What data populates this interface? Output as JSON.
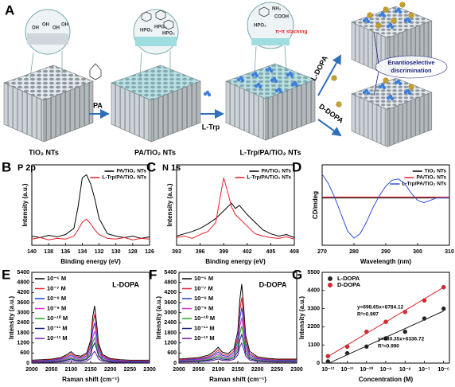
{
  "schematic": {
    "label": "A",
    "substrates": [
      "TiO₂ NTs",
      "PA/TiO₂ NTs",
      "L-Trp/PA/TiO₂ NTs"
    ],
    "reagents": [
      "PA",
      "L-Trp",
      "L-DOPA",
      "D-DOPA"
    ],
    "stacking": "π-π stacking",
    "discrimination": [
      "Enantioselective",
      "discrimination"
    ],
    "groups": [
      "OH",
      "HPO₃",
      "NH₂",
      "COOH"
    ]
  },
  "chart_data": [
    {
      "type": "line",
      "label": "B",
      "title": "P 2p",
      "xlabel": "Binding energy (eV)",
      "ylabel": "Intensity (a.u.)",
      "x": [
        140,
        139,
        138,
        137,
        136,
        135,
        134.5,
        134,
        133.5,
        133,
        132.5,
        132,
        131,
        130,
        129,
        128,
        127,
        126
      ],
      "xlim": [
        140,
        126
      ],
      "xticks": [
        140,
        138,
        136,
        134,
        132,
        130,
        128,
        126
      ],
      "ylim": [
        0,
        105
      ],
      "legend": "top-right",
      "series": [
        {
          "name": "PA/TiO₂ NTs",
          "color": "#000000",
          "values": [
            12,
            10,
            13,
            11,
            14,
            22,
            50,
            88,
            92,
            80,
            60,
            35,
            15,
            12,
            10,
            12,
            9,
            11
          ]
        },
        {
          "name": "L-Trp/PA/TiO₂ NTs",
          "color": "#e8202a",
          "values": [
            8,
            10,
            7,
            9,
            8,
            12,
            20,
            30,
            34,
            28,
            20,
            14,
            9,
            8,
            10,
            7,
            9,
            8
          ]
        }
      ]
    },
    {
      "type": "line",
      "label": "C",
      "title": "N 1s",
      "xlabel": "Binding energy (eV)",
      "ylabel": "Intensity (a.u.)",
      "x": [
        393,
        394,
        395,
        396,
        397,
        398,
        398.5,
        399,
        399.5,
        400,
        400.5,
        401,
        402,
        403,
        404,
        405,
        406,
        407,
        408
      ],
      "xlim": [
        393,
        408
      ],
      "xticks": [
        393,
        396,
        399,
        402,
        405,
        408
      ],
      "ylim": [
        0,
        105
      ],
      "legend": "top-right",
      "series": [
        {
          "name": "PA/TiO₂ NTs",
          "color": "#000000",
          "values": [
            12,
            15,
            18,
            22,
            28,
            35,
            40,
            45,
            50,
            55,
            48,
            52,
            40,
            30,
            20,
            15,
            12,
            14,
            10
          ]
        },
        {
          "name": "L-Trp/PA/TiO₂ NTs",
          "color": "#e8202a",
          "values": [
            10,
            12,
            9,
            14,
            18,
            30,
            60,
            88,
            70,
            50,
            40,
            35,
            25,
            15,
            12,
            10,
            9,
            11,
            8
          ]
        }
      ]
    },
    {
      "type": "line",
      "label": "D",
      "xlabel": "Wavelength (nm)",
      "ylabel": "CD/mdeg",
      "x": [
        270,
        272,
        274,
        276,
        278,
        280,
        282,
        284,
        286,
        288,
        290,
        292,
        294,
        296,
        298,
        300,
        302,
        304,
        306,
        308,
        310
      ],
      "xlim": [
        270,
        310
      ],
      "xticks": [
        270,
        280,
        290,
        300,
        310
      ],
      "ylim": [
        -20,
        14
      ],
      "legend": "top-right",
      "series": [
        {
          "name": "TiO₂ NTs",
          "color": "#000000",
          "values": [
            0,
            0,
            0,
            0,
            0,
            0,
            0,
            0,
            0,
            0,
            0,
            0,
            0,
            0,
            0,
            0,
            0,
            0,
            0,
            0,
            0
          ]
        },
        {
          "name": "PA/TiO₂ NTs",
          "color": "#e8202a",
          "values": [
            0.4,
            0.4,
            0.4,
            0.4,
            0.4,
            0.4,
            0.4,
            0.4,
            0.4,
            0.4,
            0.4,
            0.4,
            0.4,
            0.4,
            0.4,
            0.4,
            0.4,
            0.4,
            0.4,
            0.4,
            0.4
          ]
        },
        {
          "name": "L-Trp/PA/TiO₂ NTs",
          "color": "#2f4fd8",
          "values": [
            10,
            6,
            0,
            -7,
            -14,
            -17,
            -15,
            -10,
            -4,
            1,
            5,
            7.5,
            8,
            6,
            2,
            -1,
            -2,
            -1,
            0,
            0,
            0
          ]
        }
      ]
    },
    {
      "type": "line",
      "label": "E",
      "xlabel": "Raman shift (cm⁻¹)",
      "ylabel": "Intensity (a.u.)",
      "annotations": [
        "L-DOPA"
      ],
      "x": [
        2000,
        2025,
        2050,
        2075,
        2090,
        2100,
        2110,
        2125,
        2140,
        2150,
        2155,
        2160,
        2165,
        2170,
        2180,
        2200,
        2225,
        2250,
        2275,
        2300
      ],
      "xlim": [
        2000,
        2300
      ],
      "xticks": [
        2000,
        2050,
        2100,
        2150,
        2200,
        2250,
        2300
      ],
      "ylim": [
        0,
        5400
      ],
      "yticks": [
        0,
        600,
        1200,
        1800,
        2400,
        3000,
        3600,
        4200,
        4800,
        5400
      ],
      "legend": "top-left",
      "series": [
        {
          "name": "10⁻⁶ M",
          "color": "#000000",
          "values": [
            170,
            204,
            238,
            340,
            510,
            680,
            476,
            408,
            612,
            1360,
            2720,
            3400,
            2380,
            1190,
            510,
            272,
            204,
            170,
            170,
            170
          ]
        },
        {
          "name": "10⁻⁷ M",
          "color": "#e8202a",
          "values": [
            145,
            174,
            203,
            290,
            435,
            580,
            406,
            348,
            522,
            1160,
            2320,
            2900,
            2030,
            1015,
            435,
            232,
            174,
            145,
            145,
            145
          ]
        },
        {
          "name": "10⁻⁸ M",
          "color": "#1f3fd6",
          "values": [
            120,
            144,
            168,
            240,
            360,
            480,
            336,
            288,
            432,
            960,
            1920,
            2400,
            1680,
            840,
            360,
            192,
            144,
            120,
            120,
            120
          ]
        },
        {
          "name": "10⁻⁹ M",
          "color": "#d62bd6",
          "values": [
            95,
            114,
            133,
            190,
            285,
            380,
            266,
            228,
            342,
            760,
            1520,
            1900,
            1330,
            665,
            285,
            152,
            114,
            95,
            95,
            95
          ]
        },
        {
          "name": "10⁻¹⁰ M",
          "color": "#25a525",
          "values": [
            75,
            90,
            105,
            150,
            225,
            300,
            210,
            180,
            270,
            600,
            1200,
            1500,
            1050,
            525,
            225,
            120,
            90,
            75,
            75,
            75
          ]
        },
        {
          "name": "10⁻¹¹ M",
          "color": "#1a237e",
          "values": [
            60,
            72,
            84,
            120,
            180,
            240,
            168,
            144,
            216,
            480,
            960,
            1200,
            840,
            420,
            180,
            96,
            72,
            60,
            60,
            60
          ]
        },
        {
          "name": "10⁻¹² M",
          "color": "#6a1b9a",
          "values": [
            35,
            42,
            49,
            70,
            105,
            140,
            98,
            84,
            126,
            280,
            560,
            700,
            490,
            245,
            105,
            56,
            42,
            35,
            35,
            35
          ]
        }
      ]
    },
    {
      "type": "line",
      "label": "F",
      "xlabel": "Raman shift (cm⁻¹)",
      "ylabel": "Intensity (a.u.)",
      "annotations": [
        "D-DOPA"
      ],
      "x": [
        2000,
        2025,
        2050,
        2075,
        2090,
        2100,
        2110,
        2125,
        2140,
        2150,
        2155,
        2160,
        2165,
        2170,
        2180,
        2200,
        2225,
        2250,
        2275,
        2300
      ],
      "xlim": [
        2000,
        2300
      ],
      "xticks": [
        2000,
        2050,
        2100,
        2150,
        2200,
        2250,
        2300
      ],
      "ylim": [
        0,
        5400
      ],
      "yticks": [
        0,
        600,
        1200,
        1800,
        2400,
        3000,
        3600,
        4200,
        4800,
        5400
      ],
      "legend": "top-left",
      "series": [
        {
          "name": "10⁻⁶ M",
          "color": "#000000",
          "values": [
            235,
            282,
            329,
            470,
            705,
            940,
            658,
            564,
            846,
            1880,
            3760,
            4700,
            3290,
            1645,
            705,
            376,
            282,
            235,
            235,
            235
          ]
        },
        {
          "name": "10⁻⁷ M",
          "color": "#e8202a",
          "values": [
            195,
            234,
            273,
            390,
            585,
            780,
            546,
            468,
            702,
            1560,
            3120,
            3900,
            2730,
            1365,
            585,
            312,
            234,
            195,
            195,
            195
          ]
        },
        {
          "name": "10⁻⁸ M",
          "color": "#1f3fd6",
          "values": [
            165,
            198,
            231,
            330,
            495,
            660,
            462,
            396,
            594,
            1320,
            2640,
            3300,
            2310,
            1155,
            495,
            264,
            198,
            165,
            165,
            165
          ]
        },
        {
          "name": "10⁻⁹ M",
          "color": "#d62bd6",
          "values": [
            135,
            162,
            189,
            270,
            405,
            540,
            378,
            324,
            486,
            1080,
            2160,
            2700,
            1890,
            945,
            405,
            216,
            162,
            135,
            135,
            135
          ]
        },
        {
          "name": "10⁻¹⁰ M",
          "color": "#25a525",
          "values": [
            110,
            132,
            154,
            220,
            330,
            440,
            308,
            264,
            396,
            880,
            1760,
            2200,
            1540,
            770,
            330,
            176,
            132,
            110,
            110,
            110
          ]
        },
        {
          "name": "10⁻¹¹ M",
          "color": "#1a237e",
          "values": [
            85,
            102,
            119,
            170,
            255,
            340,
            238,
            204,
            306,
            680,
            1360,
            1700,
            1190,
            595,
            255,
            136,
            102,
            85,
            85,
            85
          ]
        },
        {
          "name": "10⁻¹² M",
          "color": "#6a1b9a",
          "values": [
            60,
            72,
            84,
            120,
            180,
            240,
            168,
            144,
            216,
            480,
            960,
            1200,
            840,
            420,
            180,
            96,
            72,
            60,
            60,
            60
          ]
        }
      ]
    },
    {
      "type": "scatter",
      "label": "G",
      "xlabel": "Concentration (M)",
      "ylabel": "Intensity (a.u.)",
      "log_x": true,
      "annotations": [
        "y=698.65x+8784.12",
        "R²=0.997",
        "y=530.35x+6336.72",
        "R²=0.990"
      ],
      "x": [
        1e-12,
        1e-11,
        1e-10,
        1e-09,
        1e-08,
        1e-07,
        1e-06
      ],
      "xlim": [
        5e-13,
        2e-06
      ],
      "xticks": [
        {
          "value": 1e-12,
          "label": "10⁻¹²"
        },
        {
          "value": 1e-11,
          "label": "10⁻¹¹"
        },
        {
          "value": 1e-10,
          "label": "10⁻¹⁰"
        },
        {
          "value": 1e-09,
          "label": "10⁻⁹"
        },
        {
          "value": 1e-08,
          "label": "10⁻⁸"
        },
        {
          "value": 1e-07,
          "label": "10⁻⁷"
        },
        {
          "value": 1e-06,
          "label": "10⁻⁶"
        }
      ],
      "ylim": [
        0,
        5500
      ],
      "yticks": [
        0,
        1100,
        2200,
        3300,
        4400,
        5500
      ],
      "legend": "top-left",
      "series": [
        {
          "name": "L-DOPA",
          "color": "#222222",
          "values": [
            100,
            600,
            1000,
            1500,
            1900,
            2700,
            3300
          ],
          "fit_slope": 530.35,
          "fit_intercept": 6336.72
        },
        {
          "name": "D-DOPA",
          "color": "#e8202a",
          "values": [
            420,
            1000,
            1900,
            2500,
            3100,
            3800,
            4600
          ],
          "fit_slope": 698.65,
          "fit_intercept": 8784.12
        }
      ]
    }
  ]
}
